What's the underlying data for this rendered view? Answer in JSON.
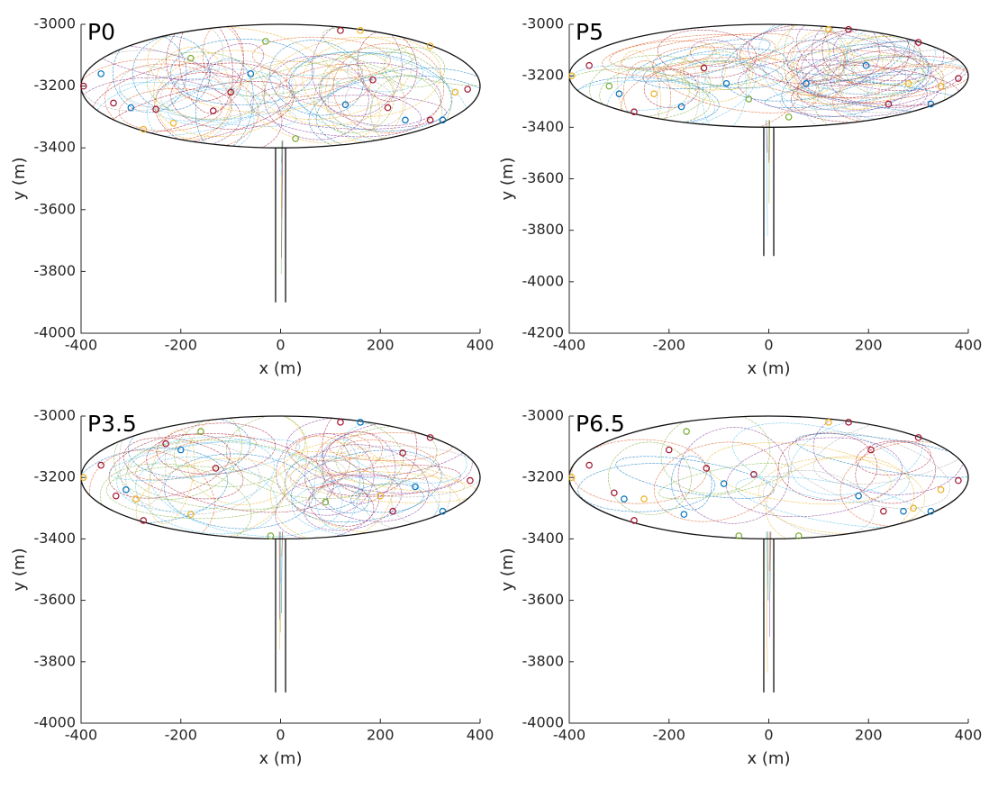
{
  "chart_data": [
    {
      "type": "scatter",
      "title": "P0",
      "xlabel": "x (m)",
      "ylabel": "y (m)",
      "xlim": [
        -400,
        400
      ],
      "xticks": [
        -400,
        -200,
        0,
        200,
        400
      ],
      "ylim": [
        -4000,
        -3000
      ],
      "yticks": [
        -4000,
        -3800,
        -3600,
        -3400,
        -3200,
        -3000
      ],
      "series": [
        {
          "color": "#a2142f",
          "x": [
            -395,
            -335,
            -250,
            -135,
            -100,
            120,
            185,
            215,
            300,
            375
          ],
          "values": [
            -3200,
            -3255,
            -3275,
            -3280,
            -3220,
            -3020,
            -3180,
            -3270,
            -3310,
            -3210
          ]
        },
        {
          "color": "#0072bd",
          "x": [
            -360,
            -300,
            -60,
            250,
            325,
            130
          ],
          "values": [
            -3160,
            -3270,
            -3160,
            -3310,
            -3310,
            -3260
          ]
        },
        {
          "color": "#edb120",
          "x": [
            -275,
            -215,
            160,
            300,
            350
          ],
          "values": [
            -3340,
            -3320,
            -3020,
            -3070,
            -3220
          ]
        },
        {
          "color": "#77ac30",
          "x": [
            -30,
            30,
            -180
          ],
          "values": [
            -3055,
            -3370,
            -3110
          ]
        }
      ]
    },
    {
      "type": "scatter",
      "title": "P5",
      "xlabel": "x (m)",
      "ylabel": "y (m)",
      "xlim": [
        -400,
        400
      ],
      "xticks": [
        -400,
        -200,
        0,
        200,
        400
      ],
      "ylim": [
        -4200,
        -3000
      ],
      "yticks": [
        -4200,
        -4000,
        -3800,
        -3600,
        -3400,
        -3200,
        -3000
      ],
      "series": [
        {
          "color": "#a2142f",
          "x": [
            -360,
            -270,
            -130,
            160,
            300,
            380,
            240
          ],
          "values": [
            -3160,
            -3340,
            -3170,
            -3020,
            -3070,
            -3210,
            -3310
          ]
        },
        {
          "color": "#0072bd",
          "x": [
            -300,
            -175,
            -85,
            75,
            325,
            195
          ],
          "values": [
            -3270,
            -3320,
            -3230,
            -3230,
            -3310,
            -3160
          ]
        },
        {
          "color": "#edb120",
          "x": [
            -395,
            -230,
            120,
            280,
            345
          ],
          "values": [
            -3200,
            -3270,
            -3020,
            -3230,
            -3240
          ]
        },
        {
          "color": "#77ac30",
          "x": [
            -320,
            -40,
            40
          ],
          "values": [
            -3240,
            -3290,
            -3360
          ]
        }
      ]
    },
    {
      "type": "scatter",
      "title": "P3.5",
      "xlabel": "x (m)",
      "ylabel": "y (m)",
      "xlim": [
        -400,
        400
      ],
      "xticks": [
        -400,
        -200,
        0,
        200,
        400
      ],
      "ylim": [
        -4000,
        -3000
      ],
      "yticks": [
        -4000,
        -3800,
        -3600,
        -3400,
        -3200,
        -3000
      ],
      "series": [
        {
          "color": "#a2142f",
          "x": [
            -360,
            -330,
            -275,
            -230,
            -130,
            120,
            225,
            300,
            380,
            245
          ],
          "values": [
            -3160,
            -3260,
            -3340,
            -3090,
            -3170,
            -3020,
            -3310,
            -3070,
            -3210,
            -3120
          ]
        },
        {
          "color": "#0072bd",
          "x": [
            -310,
            -200,
            160,
            325,
            270
          ],
          "values": [
            -3240,
            -3110,
            -3020,
            -3310,
            -3230
          ]
        },
        {
          "color": "#edb120",
          "x": [
            -395,
            -290,
            -180,
            200
          ],
          "values": [
            -3200,
            -3270,
            -3320,
            -3260
          ]
        },
        {
          "color": "#77ac30",
          "x": [
            -160,
            90,
            -20
          ],
          "values": [
            -3050,
            -3280,
            -3390
          ]
        }
      ]
    },
    {
      "type": "scatter",
      "title": "P6.5",
      "xlabel": "x (m)",
      "ylabel": "y (m)",
      "xlim": [
        -400,
        400
      ],
      "xticks": [
        -400,
        -200,
        0,
        200,
        400
      ],
      "ylim": [
        -4000,
        -3000
      ],
      "yticks": [
        -4000,
        -3800,
        -3600,
        -3400,
        -3200,
        -3000
      ],
      "series": [
        {
          "color": "#a2142f",
          "x": [
            -360,
            -310,
            -270,
            -200,
            -125,
            -30,
            160,
            205,
            300,
            380,
            230
          ],
          "values": [
            -3160,
            -3250,
            -3340,
            -3110,
            -3170,
            -3190,
            -3020,
            -3110,
            -3070,
            -3210,
            -3310
          ]
        },
        {
          "color": "#0072bd",
          "x": [
            -290,
            -170,
            -90,
            180,
            270,
            325
          ],
          "values": [
            -3270,
            -3320,
            -3220,
            -3260,
            -3310,
            -3310
          ]
        },
        {
          "color": "#edb120",
          "x": [
            -395,
            -250,
            120,
            345,
            290
          ],
          "values": [
            -3200,
            -3270,
            -3020,
            -3240,
            -3300
          ]
        },
        {
          "color": "#77ac30",
          "x": [
            -60,
            60,
            -165
          ],
          "values": [
            -3390,
            -3390,
            -3050
          ]
        }
      ]
    }
  ]
}
